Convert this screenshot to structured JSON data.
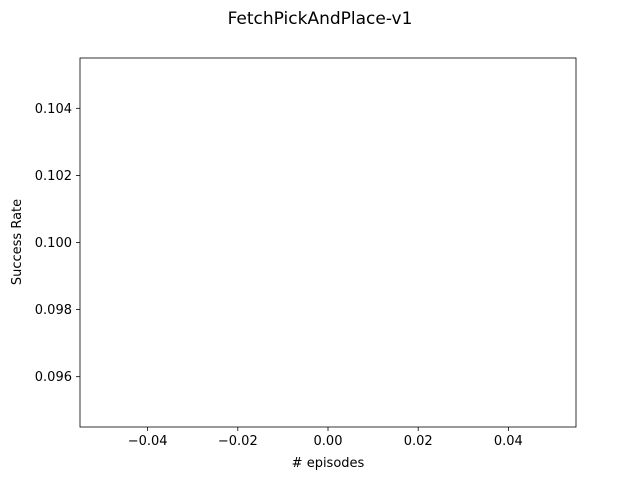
{
  "chart_data": {
    "type": "line",
    "title": "FetchPickAndPlace-v1",
    "xlabel": "# episodes",
    "ylabel": "Success Rate",
    "xlim": [
      -0.055,
      0.055
    ],
    "ylim": [
      0.0945,
      0.1055
    ],
    "xticks": [
      -0.04,
      -0.02,
      0.0,
      0.02,
      0.04
    ],
    "xtick_labels": [
      "−0.04",
      "−0.02",
      "0.00",
      "0.02",
      "0.04"
    ],
    "yticks": [
      0.096,
      0.098,
      0.1,
      0.102,
      0.104
    ],
    "ytick_labels": [
      "0.096",
      "0.098",
      "0.100",
      "0.102",
      "0.104"
    ],
    "grid": false,
    "series": []
  }
}
